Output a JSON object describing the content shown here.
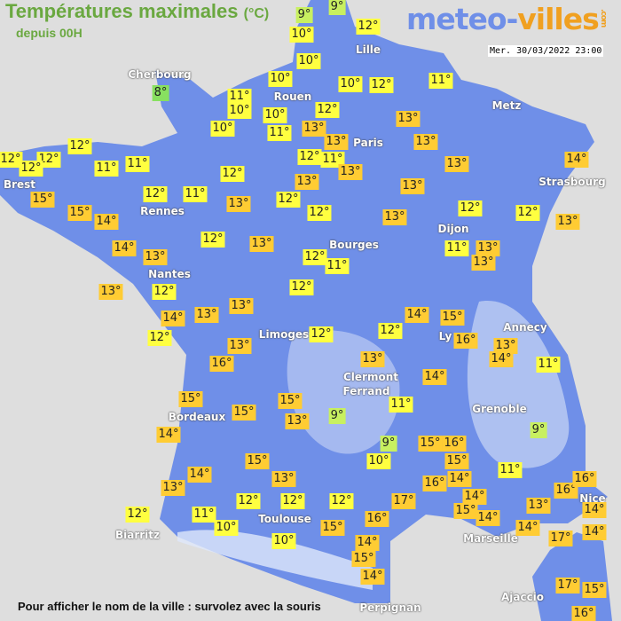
{
  "header": {
    "title": "Températures maximales",
    "unit": "(°C)",
    "subtitle": "depuis 00H",
    "date": "Mer. 30/03/2022 23:00"
  },
  "logo": {
    "part1": "meteo-",
    "part2": "villes",
    ".com": ".com"
  },
  "colors": {
    "land": "#6f8fe8",
    "sea": "#dedede",
    "cold": "#c8f060",
    "mild": "#ffff40",
    "warm": "#ffcc33"
  },
  "footer": "Pour afficher le nom de la ville : survolez avec la souris",
  "cities": [
    "Cherbourg",
    "Lille",
    "Rouen",
    "Paris",
    "Metz",
    "Brest",
    "Strasbourg",
    "Rennes",
    "Dijon",
    "Bourges",
    "Nantes",
    "Annecy",
    "Limoges",
    "Ly",
    "Clermont",
    "Ferrand",
    "Grenoble",
    "Bordeaux",
    "Nice",
    "Toulouse",
    "Biarritz",
    "Marseille",
    "Perpignan",
    "Ajaccio"
  ],
  "temperatures": [
    "9°",
    "9°",
    "12°",
    "10°",
    "10°",
    "12°",
    "10°",
    "11°",
    "10°",
    "11°",
    "10°",
    "10°",
    "12°",
    "10°",
    "11°",
    "13°",
    "13°",
    "13°",
    "13°",
    "12°",
    "11°",
    "13°",
    "13°",
    "14°",
    "12°",
    "12°",
    "12°",
    "12°",
    "11°",
    "11°",
    "12°",
    "13°",
    "13°",
    "12°",
    "11°",
    "13°",
    "12°",
    "12°",
    "13°",
    "12°",
    "12°",
    "13°",
    "15°",
    "15°",
    "14°",
    "12°",
    "13°",
    "14°",
    "13°",
    "12°",
    "11°",
    "11°",
    "13°",
    "13°",
    "13°",
    "12°",
    "12°",
    "14°",
    "13°",
    "13°",
    "14°",
    "15°",
    "12°",
    "12°",
    "12°",
    "16°",
    "13°",
    "14°",
    "11°",
    "13°",
    "16°",
    "13°",
    "14°",
    "15°",
    "15°",
    "15°",
    "13°",
    "9°",
    "11°",
    "14°",
    "9°",
    "15°",
    "16°",
    "10°",
    "15°",
    "11°",
    "9°",
    "15°",
    "14°",
    "13°",
    "16°",
    "14°",
    "13°",
    "12°",
    "12°",
    "12°",
    "17°",
    "14°",
    "16°",
    "16°",
    "15°",
    "14°",
    "13°",
    "12°",
    "11°",
    "16°",
    "14°",
    "14°",
    "14°",
    "10°",
    "15°",
    "10°",
    "17°",
    "14°",
    "15°",
    "14°",
    "17°",
    "15°",
    "16°",
    "8°"
  ]
}
